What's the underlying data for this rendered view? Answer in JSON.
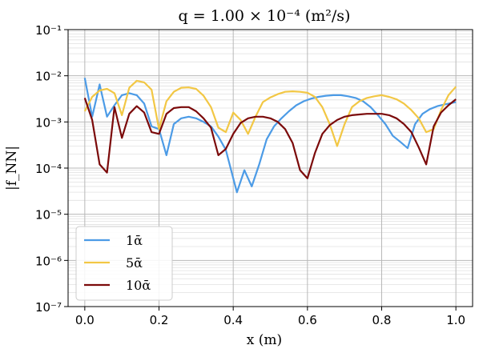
{
  "chart_data": {
    "type": "line",
    "title": "q = 1.00 × 10⁻⁴ (m²/s)",
    "xlabel": "x (m)",
    "ylabel": "|f_NN|",
    "xlim": [
      -0.045,
      1.045
    ],
    "ylim": [
      1e-07,
      0.1
    ],
    "yscale": "log",
    "grid": "on (major and minor)",
    "legend_position": "lower-left",
    "x_ticks": [
      0.0,
      0.2,
      0.4,
      0.6,
      0.8,
      1.0
    ],
    "x_tick_labels": [
      "0.0",
      "0.2",
      "0.4",
      "0.6",
      "0.8",
      "1.0"
    ],
    "y_ticks": [
      -7,
      -6,
      -5,
      -4,
      -3,
      -2,
      -1
    ],
    "y_tick_labels": [
      "10⁻⁷",
      "10⁻⁶",
      "10⁻⁵",
      "10⁻⁴",
      "10⁻³",
      "10⁻²",
      "10⁻¹"
    ],
    "series": [
      {
        "name": "1ᾱ",
        "color": "#4c9be6",
        "x": [
          0.0,
          0.02,
          0.04,
          0.06,
          0.08,
          0.1,
          0.12,
          0.14,
          0.16,
          0.18,
          0.2,
          0.22,
          0.24,
          0.26,
          0.28,
          0.3,
          0.32,
          0.34,
          0.36,
          0.38,
          0.4,
          0.41,
          0.43,
          0.45,
          0.47,
          0.49,
          0.51,
          0.53,
          0.55,
          0.57,
          0.59,
          0.61,
          0.63,
          0.65,
          0.67,
          0.69,
          0.71,
          0.73,
          0.75,
          0.77,
          0.79,
          0.81,
          0.83,
          0.85,
          0.87,
          0.89,
          0.91,
          0.93,
          0.95,
          0.97,
          1.0
        ],
        "values": [
          0.009,
          0.0013,
          0.0065,
          0.0013,
          0.0023,
          0.0038,
          0.0042,
          0.0038,
          0.0025,
          0.0008,
          0.0007,
          0.00019,
          0.0009,
          0.0012,
          0.0013,
          0.0012,
          0.001,
          0.0008,
          0.00048,
          0.00025,
          6e-05,
          3e-05,
          9e-05,
          4e-05,
          0.00012,
          0.00042,
          0.0008,
          0.0012,
          0.0017,
          0.0023,
          0.0028,
          0.0032,
          0.0035,
          0.0037,
          0.0038,
          0.0038,
          0.0036,
          0.0033,
          0.0028,
          0.0021,
          0.0014,
          0.0009,
          0.0005,
          0.00037,
          0.00027,
          0.0009,
          0.0015,
          0.0019,
          0.0022,
          0.0024,
          0.0027
        ]
      },
      {
        "name": "5ᾱ",
        "color": "#f2c744",
        "x": [
          0.0,
          0.02,
          0.04,
          0.06,
          0.08,
          0.1,
          0.12,
          0.14,
          0.16,
          0.18,
          0.2,
          0.22,
          0.24,
          0.26,
          0.28,
          0.3,
          0.32,
          0.34,
          0.36,
          0.38,
          0.4,
          0.42,
          0.44,
          0.46,
          0.48,
          0.5,
          0.52,
          0.54,
          0.56,
          0.58,
          0.6,
          0.62,
          0.64,
          0.66,
          0.68,
          0.7,
          0.72,
          0.74,
          0.76,
          0.78,
          0.8,
          0.82,
          0.84,
          0.86,
          0.88,
          0.9,
          0.92,
          0.94,
          0.96,
          0.98,
          1.0
        ],
        "values": [
          0.0017,
          0.0035,
          0.0048,
          0.0052,
          0.0042,
          0.0014,
          0.0055,
          0.0078,
          0.0072,
          0.005,
          0.0007,
          0.0028,
          0.0045,
          0.0055,
          0.0056,
          0.0052,
          0.0037,
          0.0021,
          0.00075,
          0.0006,
          0.0016,
          0.0011,
          0.00055,
          0.0013,
          0.0027,
          0.0034,
          0.004,
          0.0045,
          0.0046,
          0.0045,
          0.0043,
          0.0035,
          0.0021,
          0.0009,
          0.0003,
          0.0009,
          0.0021,
          0.0028,
          0.0033,
          0.0036,
          0.0038,
          0.0035,
          0.0031,
          0.0025,
          0.0018,
          0.0012,
          0.0006,
          0.0007,
          0.0018,
          0.0038,
          0.0058
        ]
      },
      {
        "name": "10ᾱ",
        "color": "#7b0a0a",
        "x": [
          0.0,
          0.02,
          0.04,
          0.06,
          0.08,
          0.1,
          0.12,
          0.14,
          0.16,
          0.18,
          0.2,
          0.22,
          0.24,
          0.26,
          0.28,
          0.3,
          0.32,
          0.34,
          0.36,
          0.38,
          0.4,
          0.42,
          0.44,
          0.46,
          0.48,
          0.5,
          0.52,
          0.54,
          0.56,
          0.58,
          0.6,
          0.62,
          0.64,
          0.66,
          0.68,
          0.7,
          0.72,
          0.74,
          0.76,
          0.78,
          0.8,
          0.82,
          0.84,
          0.86,
          0.88,
          0.9,
          0.92,
          0.94,
          0.96,
          0.98,
          1.0
        ],
        "values": [
          0.0033,
          0.0011,
          0.00012,
          8e-05,
          0.0021,
          0.00045,
          0.0015,
          0.0022,
          0.0016,
          0.0006,
          0.00055,
          0.0015,
          0.002,
          0.0021,
          0.0021,
          0.0017,
          0.0012,
          0.00075,
          0.00019,
          0.00026,
          0.00055,
          0.00095,
          0.0012,
          0.0013,
          0.0013,
          0.0012,
          0.001,
          0.0007,
          0.00035,
          9e-05,
          6e-05,
          0.00021,
          0.00055,
          0.00085,
          0.0011,
          0.0013,
          0.0014,
          0.00145,
          0.0015,
          0.0015,
          0.0015,
          0.0014,
          0.0012,
          0.0009,
          0.0006,
          0.00028,
          0.00012,
          0.0008,
          0.0016,
          0.0023,
          0.0031
        ]
      }
    ]
  }
}
